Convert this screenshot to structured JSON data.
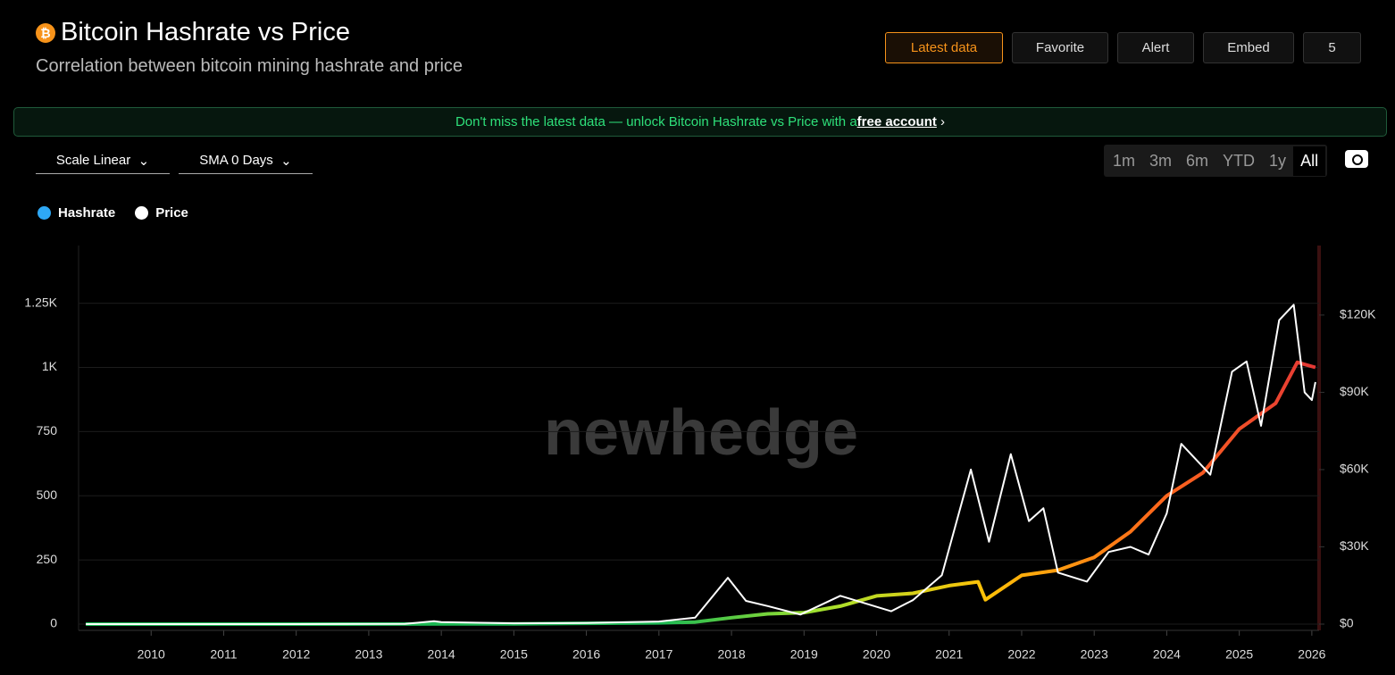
{
  "ui": {
    "title": "Bitcoin Hashrate vs Price",
    "subtitle": "Correlation between bitcoin mining hashrate and price",
    "buttons": [
      "Latest data",
      "Favorite",
      "Alert",
      "Embed",
      "5"
    ],
    "banner": {
      "text": "Don't miss the latest data — unlock Bitcoin Hashrate vs Price with a ",
      "link": "free account"
    },
    "controls": [
      "Scale Linear",
      "SMA 0 Days"
    ],
    "ranges": [
      "1m",
      "3m",
      "6m",
      "YTD",
      "1y",
      "All"
    ],
    "watermark": "newhedge"
  },
  "chart_data": {
    "type": "line",
    "xlim": [
      2009,
      2026.1
    ],
    "xticks": [
      2010,
      2011,
      2012,
      2013,
      2014,
      2015,
      2016,
      2017,
      2018,
      2019,
      2020,
      2021,
      2022,
      2023,
      2024,
      2025,
      2026
    ],
    "ylim": [
      0,
      1475
    ],
    "yticks": [
      0,
      250,
      500,
      750,
      {
        "value": 1000,
        "label": "1K"
      },
      {
        "value": 1250,
        "label": "1.25K"
      }
    ],
    "y2lim": [
      0,
      147000
    ],
    "y2ticks": [
      {
        "value": 0,
        "label": "$0"
      },
      {
        "value": 30000,
        "label": "$30K"
      },
      {
        "value": 60000,
        "label": "$60K"
      },
      {
        "value": 90000,
        "label": "$90K"
      },
      {
        "value": 120000,
        "label": "$120K"
      }
    ],
    "grid": true,
    "series": [
      {
        "name": "Hashrate",
        "color": "#2ea8f5",
        "gradient": [
          "#1db954",
          "#a6e22e",
          "#ffc107",
          "#ff6a1a",
          "#e53935"
        ],
        "x": [
          2009.1,
          2012,
          2015,
          2017,
          2017.5,
          2018,
          2018.5,
          2019,
          2019.5,
          2020,
          2020.5,
          2021,
          2021.4,
          2021.5,
          2022,
          2022.5,
          2023,
          2023.5,
          2024,
          2024.5,
          2025,
          2025.5,
          2025.8,
          2026.05
        ],
        "values": [
          0,
          0,
          1,
          5,
          8,
          25,
          40,
          45,
          70,
          110,
          120,
          150,
          165,
          95,
          190,
          210,
          260,
          360,
          500,
          590,
          760,
          860,
          1020,
          1000
        ]
      },
      {
        "name": "Price",
        "color": "#ffffff",
        "axis": "y2",
        "x": [
          2009.1,
          2012,
          2013.5,
          2013.9,
          2014,
          2015,
          2016,
          2017,
          2017.5,
          2017.95,
          2018.2,
          2018.5,
          2018.95,
          2019.5,
          2020.2,
          2020.5,
          2020.9,
          2021.3,
          2021.55,
          2021.85,
          2022.1,
          2022.3,
          2022.5,
          2022.9,
          2023.2,
          2023.5,
          2023.75,
          2024,
          2024.2,
          2024.6,
          2024.9,
          2025.1,
          2025.3,
          2025.55,
          2025.75,
          2025.9,
          2026,
          2026.05
        ],
        "values": [
          0,
          5,
          100,
          1100,
          800,
          300,
          430,
          1000,
          2500,
          18000,
          9000,
          7000,
          3700,
          11000,
          5000,
          9300,
          19000,
          60000,
          32000,
          66000,
          40000,
          45000,
          20000,
          16500,
          28000,
          30000,
          27000,
          43000,
          70000,
          58000,
          98000,
          102000,
          77000,
          118000,
          124000,
          90000,
          87000,
          94000
        ]
      }
    ]
  }
}
